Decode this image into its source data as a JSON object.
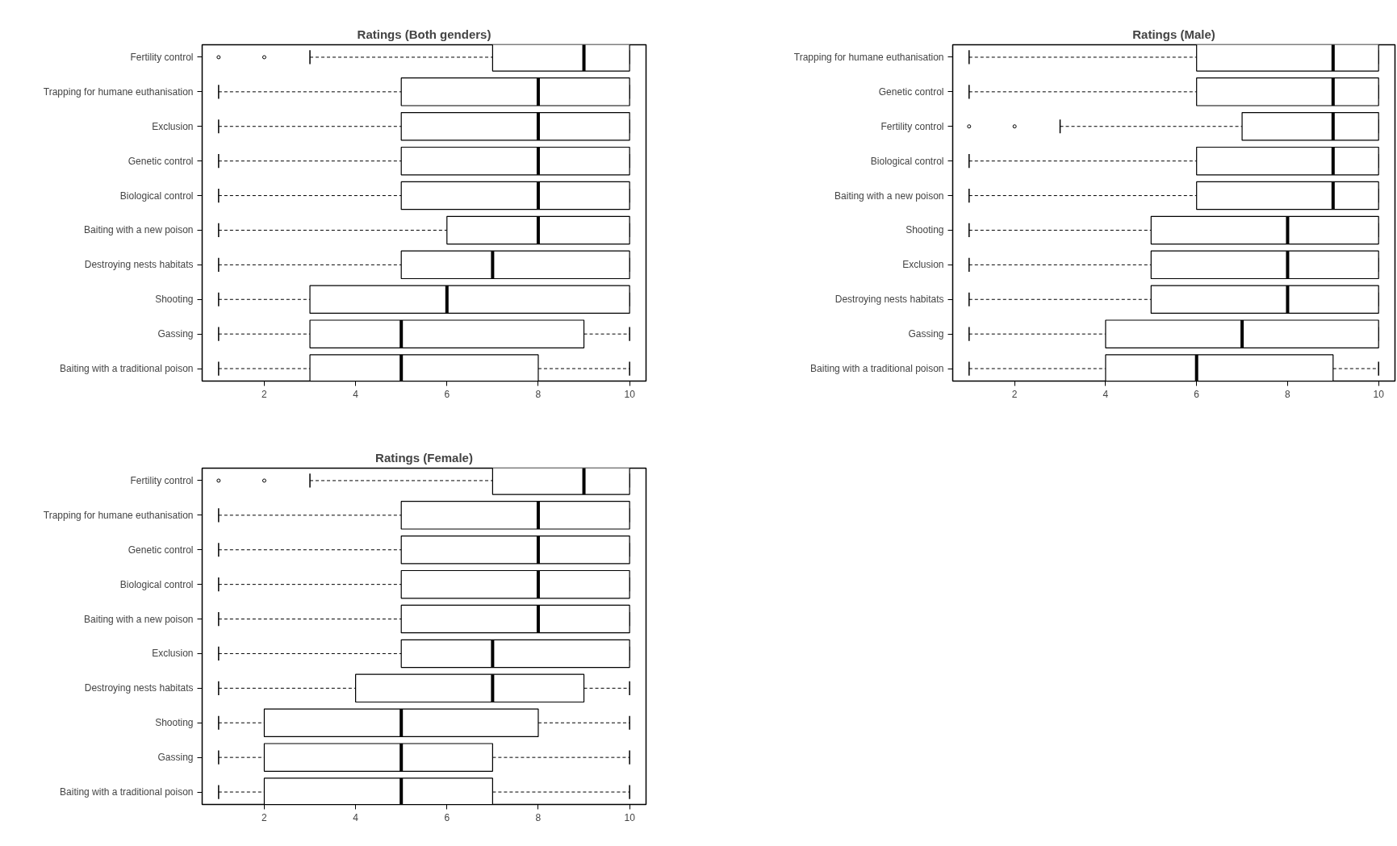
{
  "chart_data": [
    {
      "type": "box",
      "title": "Ratings (Both genders)",
      "orientation": "horizontal",
      "grid": false,
      "xlim": [
        0.64,
        10.36
      ],
      "xticks": [
        2,
        4,
        6,
        8,
        10
      ],
      "categories": [
        "Fertility control",
        "Trapping for humane euthanisation",
        "Exclusion",
        "Genetic control",
        "Biological control",
        "Baiting with a new poison",
        "Destroying nests habitats",
        "Shooting",
        "Gassing",
        "Baiting with a traditional poison"
      ],
      "boxes": [
        {
          "low": 3,
          "q1": 7,
          "median": 9,
          "q3": 10,
          "high": 10,
          "outliers": [
            1,
            2
          ]
        },
        {
          "low": 1,
          "q1": 5,
          "median": 8,
          "q3": 10,
          "high": 10
        },
        {
          "low": 1,
          "q1": 5,
          "median": 8,
          "q3": 10,
          "high": 10
        },
        {
          "low": 1,
          "q1": 5,
          "median": 8,
          "q3": 10,
          "high": 10
        },
        {
          "low": 1,
          "q1": 5,
          "median": 8,
          "q3": 10,
          "high": 10
        },
        {
          "low": 1,
          "q1": 6,
          "median": 8,
          "q3": 10,
          "high": 10
        },
        {
          "low": 1,
          "q1": 5,
          "median": 7,
          "q3": 10,
          "high": 10
        },
        {
          "low": 1,
          "q1": 3,
          "median": 6,
          "q3": 10,
          "high": 10
        },
        {
          "low": 1,
          "q1": 3,
          "median": 5,
          "q3": 9,
          "high": 10
        },
        {
          "low": 1,
          "q1": 3,
          "median": 5,
          "q3": 8,
          "high": 10
        }
      ]
    },
    {
      "type": "box",
      "title": "Ratings (Male)",
      "orientation": "horizontal",
      "grid": false,
      "xlim": [
        0.64,
        10.36
      ],
      "xticks": [
        2,
        4,
        6,
        8,
        10
      ],
      "categories": [
        "Trapping for humane euthanisation",
        "Genetic control",
        "Fertility control",
        "Biological control",
        "Baiting with a new poison",
        "Shooting",
        "Exclusion",
        "Destroying nests habitats",
        "Gassing",
        "Baiting with a traditional poison"
      ],
      "boxes": [
        {
          "low": 1,
          "q1": 6,
          "median": 9,
          "q3": 10,
          "high": 10
        },
        {
          "low": 1,
          "q1": 6,
          "median": 9,
          "q3": 10,
          "high": 10
        },
        {
          "low": 3,
          "q1": 7,
          "median": 9,
          "q3": 10,
          "high": 10,
          "outliers": [
            1,
            2
          ]
        },
        {
          "low": 1,
          "q1": 6,
          "median": 9,
          "q3": 10,
          "high": 10
        },
        {
          "low": 1,
          "q1": 6,
          "median": 9,
          "q3": 10,
          "high": 10
        },
        {
          "low": 1,
          "q1": 5,
          "median": 8,
          "q3": 10,
          "high": 10
        },
        {
          "low": 1,
          "q1": 5,
          "median": 8,
          "q3": 10,
          "high": 10
        },
        {
          "low": 1,
          "q1": 5,
          "median": 8,
          "q3": 10,
          "high": 10
        },
        {
          "low": 1,
          "q1": 4,
          "median": 7,
          "q3": 10,
          "high": 10
        },
        {
          "low": 1,
          "q1": 4,
          "median": 6,
          "q3": 9,
          "high": 10
        }
      ]
    },
    {
      "type": "box",
      "title": "Ratings (Female)",
      "orientation": "horizontal",
      "grid": false,
      "xlim": [
        0.64,
        10.36
      ],
      "xticks": [
        2,
        4,
        6,
        8,
        10
      ],
      "categories": [
        "Fertility control",
        "Trapping for humane euthanisation",
        "Genetic control",
        "Biological control",
        "Baiting with a new poison",
        "Exclusion",
        "Destroying nests habitats",
        "Shooting",
        "Gassing",
        "Baiting with a traditional poison"
      ],
      "boxes": [
        {
          "low": 3,
          "q1": 7,
          "median": 9,
          "q3": 10,
          "high": 10,
          "outliers": [
            1,
            2
          ]
        },
        {
          "low": 1,
          "q1": 5,
          "median": 8,
          "q3": 10,
          "high": 10
        },
        {
          "low": 1,
          "q1": 5,
          "median": 8,
          "q3": 10,
          "high": 10
        },
        {
          "low": 1,
          "q1": 5,
          "median": 8,
          "q3": 10,
          "high": 10
        },
        {
          "low": 1,
          "q1": 5,
          "median": 8,
          "q3": 10,
          "high": 10
        },
        {
          "low": 1,
          "q1": 5,
          "median": 7,
          "q3": 10,
          "high": 10
        },
        {
          "low": 1,
          "q1": 4,
          "median": 7,
          "q3": 9,
          "high": 10
        },
        {
          "low": 1,
          "q1": 2,
          "median": 5,
          "q3": 8,
          "high": 10
        },
        {
          "low": 1,
          "q1": 2,
          "median": 5,
          "q3": 7,
          "high": 10
        },
        {
          "low": 1,
          "q1": 2,
          "median": 5,
          "q3": 7,
          "high": 10
        }
      ]
    }
  ]
}
